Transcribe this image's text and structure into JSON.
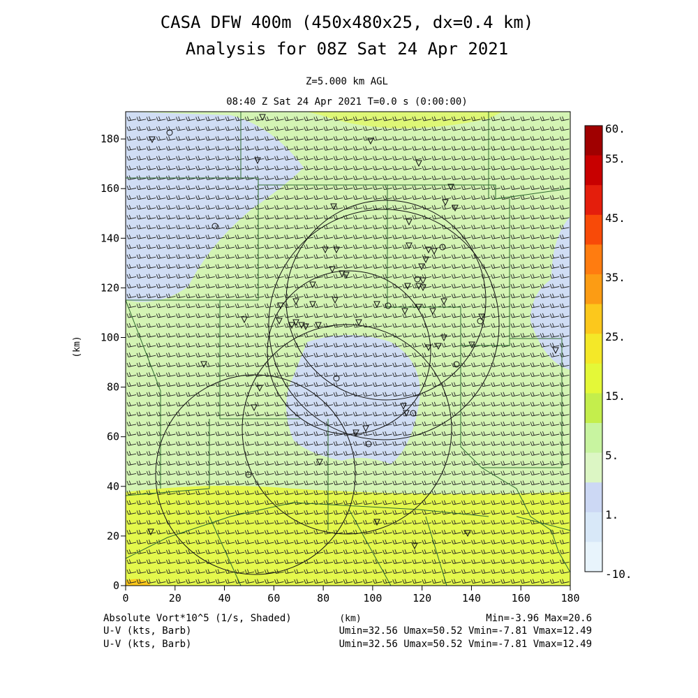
{
  "header": {
    "title_line1": "CASA DFW 400m (450x480x25, dx=0.4 km)",
    "title_line2": "Analysis for 08Z Sat 24 Apr 2021",
    "level": "Z=5.000 km AGL",
    "valid_time": "08:40 Z Sat 24 Apr 2021    T=0.0 s (0:00:00)"
  },
  "footer": {
    "field1": "Absolute Vort*10^5 (1/s, Shaded)",
    "xunit": "(km)",
    "range1": "Min=-3.96 Max=20.6",
    "field2": "U-V (kts, Barb)",
    "range2": "Umin=32.56 Umax=50.52 Vmin=-7.81 Vmax=12.49",
    "field3": "U-V (kts, Barb)",
    "range3": "Umin=32.56 Umax=50.52 Vmin=-7.81 Vmax=12.49"
  },
  "chart_data": {
    "type": "heatmap",
    "ylabel": "(km)",
    "xlabel": "(km)",
    "xlim": [
      0,
      180
    ],
    "ylim": [
      0,
      191
    ],
    "x_ticks": [
      "0",
      "20",
      "40",
      "60",
      "80",
      "100",
      "120",
      "140",
      "160",
      "180"
    ],
    "y_ticks": [
      "0",
      "20",
      "40",
      "60",
      "80",
      "100",
      "120",
      "140",
      "160",
      "180"
    ],
    "colorbar": {
      "labels": [
        "60.",
        "55.",
        "45.",
        "35.",
        "25.",
        "15.",
        "5.",
        "1.",
        "-10."
      ],
      "colors": [
        "#a00000",
        "#c80000",
        "#e41e0c",
        "#f84a08",
        "#ff7c10",
        "#fc9c14",
        "#fcc81c",
        "#f4e828",
        "#e4f838",
        "#c4ee4c",
        "#c8f4a0",
        "#dcf6c4",
        "#ccd8f4",
        "#d8e8f8",
        "#e8f4fc"
      ]
    },
    "regions": [
      {
        "label": "5.",
        "color": "#d4f4b4"
      },
      {
        "label": "15.",
        "color": "#e4f84c"
      },
      {
        "label": "1.",
        "color": "#d0ddf4"
      }
    ],
    "wind_barbs": {
      "u_range": [
        32.56,
        50.52
      ],
      "v_range": [
        -7.81,
        12.49
      ],
      "units": "kts",
      "grid_spacing_km": 4
    }
  }
}
